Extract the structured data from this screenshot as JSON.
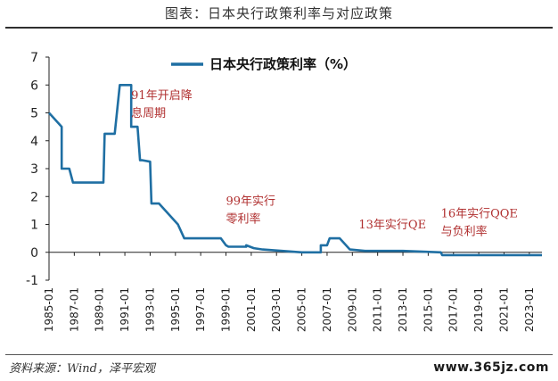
{
  "header": {
    "title": "图表：日本央行政策利率与对应政策"
  },
  "footer": {
    "source": "资料来源：Wind，泽平宏观",
    "watermark": "www.365jz.com"
  },
  "chart_data": {
    "type": "line",
    "title": "",
    "xlabel": "",
    "ylabel": "",
    "ylim": [
      -1,
      7
    ],
    "yticks": [
      -1,
      0,
      1,
      2,
      3,
      4,
      5,
      6,
      7
    ],
    "xlim": [
      1985.0,
      2024.0
    ],
    "xtick_labels": [
      "1985-01",
      "1987-01",
      "1989-01",
      "1991-01",
      "1993-01",
      "1995-01",
      "1997-01",
      "1999-01",
      "2001-01",
      "2003-01",
      "2005-01",
      "2007-01",
      "2009-01",
      "2011-01",
      "2013-01",
      "2015-01",
      "2017-01",
      "2019-01",
      "2021-01",
      "2023-01"
    ],
    "legend_position": "top-left",
    "colors": {
      "line": "#1f6fa3",
      "annotation": "#b03030",
      "axis": "#222222"
    },
    "series": [
      {
        "name": "日本央行政策利率（%）",
        "x": [
          1985.0,
          1986.0,
          1986.0,
          1986.6,
          1986.9,
          1986.9,
          1989.3,
          1989.4,
          1989.7,
          1990.2,
          1990.6,
          1990.6,
          1991.5,
          1991.5,
          1992.0,
          1992.2,
          1992.4,
          1993.0,
          1993.1,
          1993.5,
          1993.7,
          1995.2,
          1995.7,
          1998.6,
          1999.0,
          1999.2,
          2000.6,
          2000.6,
          2001.2,
          2001.9,
          2005.0,
          2006.0,
          2006.5,
          2006.5,
          2007.0,
          2007.2,
          2007.2,
          2008.0,
          2008.8,
          2008.8,
          2010.0,
          2010.0,
          2013.0,
          2016.0,
          2016.1,
          2024.0
        ],
        "y": [
          5.0,
          4.5,
          3.0,
          3.0,
          2.5,
          2.5,
          2.5,
          4.25,
          4.25,
          4.25,
          6.0,
          6.0,
          6.0,
          4.5,
          4.5,
          3.3,
          3.3,
          3.25,
          1.75,
          1.75,
          1.75,
          1.0,
          0.5,
          0.5,
          0.25,
          0.2,
          0.2,
          0.25,
          0.15,
          0.1,
          0.0,
          0.0,
          0.0,
          0.25,
          0.25,
          0.5,
          0.5,
          0.5,
          0.1,
          0.1,
          0.05,
          0.05,
          0.05,
          0.0,
          -0.1,
          -0.1
        ]
      }
    ],
    "annotations": [
      {
        "lines": [
          "91年开启降",
          "息周期"
        ],
        "x": 1991.5,
        "y": 5.5
      },
      {
        "lines": [
          "99年实行",
          "零利率"
        ],
        "x": 1999.0,
        "y": 1.7
      },
      {
        "lines": [
          "13年实行QE"
        ],
        "x": 2009.5,
        "y": 0.85
      },
      {
        "lines": [
          "16年实行QQE",
          "与负利率"
        ],
        "x": 2016.0,
        "y": 1.25
      }
    ]
  }
}
